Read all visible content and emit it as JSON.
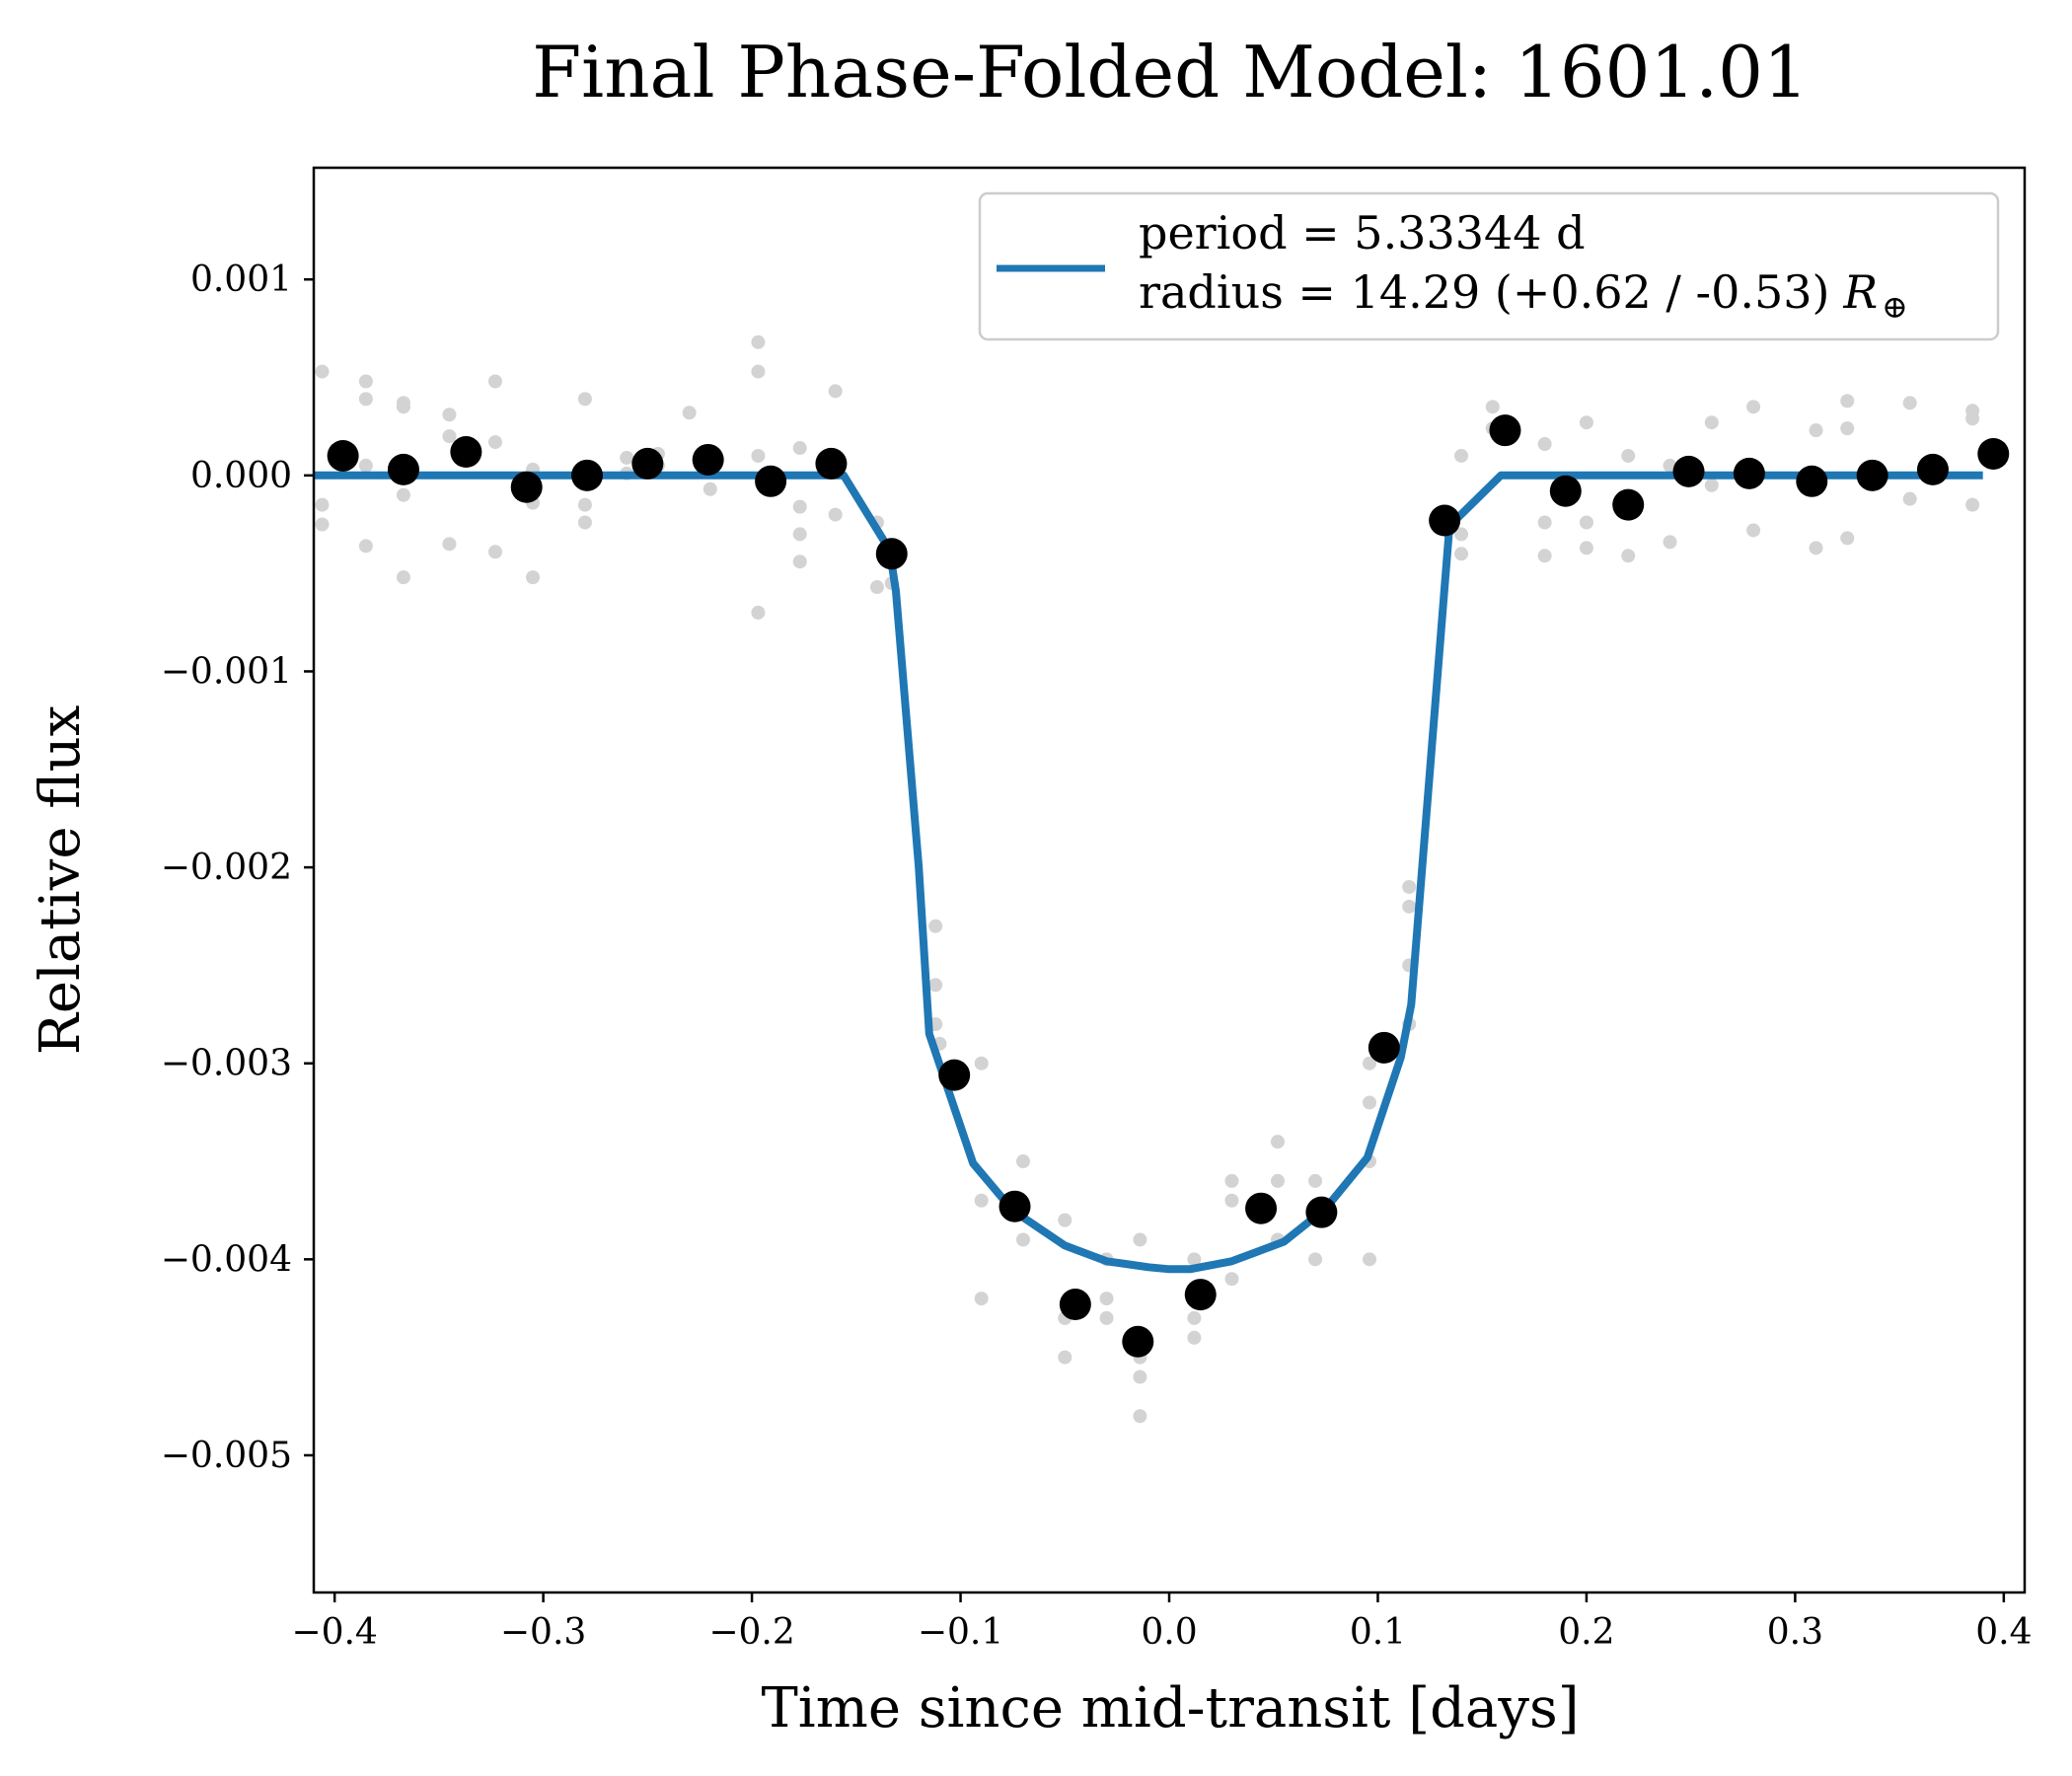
{
  "chart_data": {
    "type": "scatter",
    "title": "Final Phase-Folded Model: 1601.01",
    "xlabel": "Time since mid-transit [days]",
    "ylabel": "Relative flux",
    "xlim": [
      -0.41,
      0.41
    ],
    "ylim": [
      -0.0057,
      0.00157
    ],
    "xticks": [
      -0.4,
      -0.3,
      -0.2,
      -0.1,
      0.0,
      0.1,
      0.2,
      0.3,
      0.4
    ],
    "xtick_labels": [
      "−0.4",
      "−0.3",
      "−0.2",
      "−0.1",
      "0.0",
      "0.1",
      "0.2",
      "0.3",
      "0.4"
    ],
    "yticks": [
      0.001,
      0.0,
      -0.001,
      -0.002,
      -0.003,
      -0.004,
      -0.005
    ],
    "ytick_labels": [
      "0.001",
      "0.000",
      "−0.001",
      "−0.002",
      "−0.003",
      "−0.004",
      "−0.005"
    ],
    "grid": false,
    "legend": {
      "placement": "upper right",
      "lines": [
        "period = 5.33344 d",
        "radius = 14.29 (+0.62 / -0.53)"
      ],
      "radius_unit": "R",
      "radius_unit_sub": "⊕"
    },
    "colors": {
      "model": "#1f77b4",
      "binned": "#000000",
      "raw": "#d3d3d3"
    },
    "series": [
      {
        "kind": "line",
        "color": "#1f77b4",
        "x": [
          -0.41,
          -0.156,
          -0.134,
          -0.131,
          -0.12,
          -0.115,
          -0.094,
          -0.075,
          -0.05,
          -0.03,
          -0.01,
          0.0,
          0.01,
          0.03,
          0.055,
          0.075,
          0.095,
          0.111,
          0.116,
          0.134,
          0.137,
          0.159,
          0.39
        ],
        "y": [
          0.0,
          0.0,
          -0.00038,
          -0.00059,
          -0.002,
          -0.00285,
          -0.00351,
          -0.00375,
          -0.00393,
          -0.00401,
          -0.00404,
          -0.00405,
          -0.00405,
          -0.00401,
          -0.00391,
          -0.00374,
          -0.00348,
          -0.00297,
          -0.0027,
          -0.0003,
          -0.00023,
          0.0,
          0.0
        ]
      },
      {
        "kind": "binned",
        "color": "#000000",
        "x": [
          -0.396,
          -0.367,
          -0.337,
          -0.308,
          -0.279,
          -0.25,
          -0.221,
          -0.191,
          -0.162,
          -0.133,
          -0.103,
          -0.074,
          -0.045,
          -0.015,
          0.015,
          0.044,
          0.073,
          0.103,
          0.132,
          0.161,
          0.19,
          0.22,
          0.249,
          0.278,
          0.308,
          0.337,
          0.366,
          0.395
        ],
        "y": [
          0.0001,
          3e-05,
          0.00012,
          -6e-05,
          0.0,
          6e-05,
          8e-05,
          -3e-05,
          6e-05,
          -0.0004,
          -0.00306,
          -0.00373,
          -0.00423,
          -0.00442,
          -0.00418,
          -0.00374,
          -0.00376,
          -0.00292,
          -0.00023,
          0.00023,
          -8e-05,
          -0.00015,
          2e-05,
          1e-05,
          -3e-05,
          0.0,
          3e-05,
          0.00011
        ]
      },
      {
        "kind": "raw",
        "color": "#d3d3d3",
        "x": [
          -0.406,
          -0.406,
          -0.406,
          -0.385,
          -0.385,
          -0.385,
          -0.385,
          -0.367,
          -0.367,
          -0.367,
          -0.367,
          -0.345,
          -0.345,
          -0.345,
          -0.323,
          -0.323,
          -0.323,
          -0.305,
          -0.305,
          -0.305,
          -0.28,
          -0.28,
          -0.28,
          -0.26,
          -0.26,
          -0.245,
          -0.245,
          -0.23,
          -0.22,
          -0.22,
          -0.197,
          -0.197,
          -0.197,
          -0.197,
          -0.177,
          -0.177,
          -0.177,
          -0.177,
          -0.16,
          -0.16,
          -0.14,
          -0.14,
          -0.133,
          -0.112,
          -0.112,
          -0.112,
          -0.11,
          -0.09,
          -0.09,
          -0.09,
          -0.07,
          -0.07,
          -0.05,
          -0.05,
          -0.05,
          -0.03,
          -0.03,
          -0.03,
          -0.014,
          -0.014,
          -0.014,
          -0.014,
          0.012,
          0.012,
          0.012,
          0.03,
          0.03,
          0.03,
          0.052,
          0.052,
          0.052,
          0.07,
          0.07,
          0.096,
          0.096,
          0.096,
          0.096,
          0.115,
          0.115,
          0.115,
          0.115,
          0.14,
          0.14,
          0.14,
          0.155,
          0.155,
          0.18,
          0.18,
          0.18,
          0.2,
          0.2,
          0.2,
          0.22,
          0.22,
          0.24,
          0.24,
          0.26,
          0.26,
          0.28,
          0.28,
          0.31,
          0.31,
          0.31,
          0.325,
          0.325,
          0.325,
          0.355,
          0.355,
          0.385,
          0.385,
          0.385
        ],
        "y": [
          0.00053,
          -0.00015,
          -0.00025,
          0.00048,
          0.00039,
          5e-05,
          -0.00036,
          0.00037,
          0.00035,
          -0.0001,
          -0.00052,
          0.00031,
          0.0002,
          -0.00035,
          0.00048,
          0.00017,
          -0.00039,
          3e-05,
          -0.00014,
          -0.00052,
          0.00039,
          -0.00015,
          -0.00024,
          9e-05,
          1e-05,
          0.00011,
          5e-05,
          0.00032,
          7e-05,
          -7e-05,
          0.00068,
          0.00053,
          0.0001,
          -0.0007,
          0.00014,
          -0.00016,
          -0.0003,
          -0.00044,
          0.00043,
          -0.0002,
          -0.00024,
          -0.00057,
          -0.00055,
          -0.0023,
          -0.0026,
          -0.0028,
          -0.0029,
          -0.003,
          -0.0037,
          -0.0042,
          -0.0035,
          -0.0039,
          -0.0038,
          -0.0043,
          -0.0045,
          -0.004,
          -0.0042,
          -0.0043,
          -0.0039,
          -0.0045,
          -0.0046,
          -0.0048,
          -0.004,
          -0.0043,
          -0.0044,
          -0.0036,
          -0.0037,
          -0.0041,
          -0.0034,
          -0.0036,
          -0.0039,
          -0.0036,
          -0.004,
          -0.003,
          -0.0032,
          -0.0035,
          -0.004,
          -0.0021,
          -0.0022,
          -0.0025,
          -0.0028,
          0.0001,
          -0.0003,
          -0.0004,
          0.00035,
          0.00024,
          0.00016,
          -0.00024,
          -0.00041,
          0.00027,
          -0.00024,
          -0.00037,
          0.0001,
          -0.00041,
          5e-05,
          -0.00034,
          0.00027,
          -5e-05,
          0.00035,
          -0.00028,
          0.00023,
          -4e-05,
          -0.00037,
          0.00038,
          0.00024,
          -0.00032,
          0.00037,
          -0.00012,
          0.00033,
          0.00029,
          -0.00015
        ]
      }
    ]
  }
}
